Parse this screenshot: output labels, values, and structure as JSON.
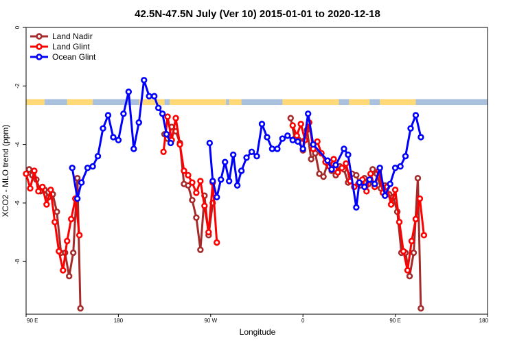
{
  "chart_data": {
    "type": "line",
    "title": "42.5N-47.5N July (Ver 10)   2015-01-01 to 2020-12-18",
    "xlabel": "Longitude",
    "ylabel": "XCO2 - MLO trend (ppm)",
    "x_ticks": [
      "90 E",
      "180",
      "90 W",
      "0",
      "90 E",
      "180"
    ],
    "y_ticks": [
      "0",
      "-2",
      "-4",
      "-6",
      "-8"
    ],
    "ylim": [
      -9.8,
      0
    ],
    "legend_position": "top-left",
    "land_ocean_strip": {
      "y_range": [
        -2.65,
        -2.45
      ],
      "land_color": "#FFD978",
      "ocean_color": "#A9C0DE"
    },
    "series": [
      {
        "name": "Land Nadir",
        "color": "#A52A2A",
        "points": [
          [
            -267,
            -4.85
          ],
          [
            -264,
            -5.05
          ],
          [
            -260,
            -5.2
          ],
          [
            -256,
            -5.6
          ],
          [
            -252,
            -5.55
          ],
          [
            -248,
            -5.8
          ],
          [
            -244,
            -5.7
          ],
          [
            -240,
            -6.3
          ],
          [
            -236,
            -7.7
          ],
          [
            -232,
            -7.7
          ],
          [
            -228,
            -8.5
          ],
          [
            -224,
            -7.7
          ],
          [
            -220,
            -5.15
          ],
          [
            -217,
            -9.6
          ],
          [
            -135,
            -3.65
          ],
          [
            -132,
            -3.8
          ],
          [
            -128,
            -3.4
          ],
          [
            -124,
            -3.55
          ],
          [
            -120,
            -3.95
          ],
          [
            -116,
            -5.35
          ],
          [
            -112,
            -5.4
          ],
          [
            -108,
            -5.9
          ],
          [
            -104,
            -6.5
          ],
          [
            -100,
            -7.6
          ],
          [
            -96,
            -5.75
          ],
          [
            -92,
            -7.1
          ],
          [
            -88,
            -6.0
          ],
          [
            -12,
            -3.1
          ],
          [
            -8,
            -3.8
          ],
          [
            -4,
            -3.85
          ],
          [
            0,
            -4.2
          ],
          [
            4,
            -3.5
          ],
          [
            8,
            -4.5
          ],
          [
            12,
            -4.3
          ],
          [
            16,
            -5.0
          ],
          [
            20,
            -5.1
          ],
          [
            24,
            -4.65
          ],
          [
            28,
            -4.9
          ],
          [
            32,
            -5.05
          ],
          [
            36,
            -4.75
          ],
          [
            40,
            -4.85
          ],
          [
            44,
            -5.3
          ],
          [
            48,
            -5.0
          ],
          [
            52,
            -5.05
          ],
          [
            56,
            -5.4
          ],
          [
            60,
            -5.15
          ],
          [
            64,
            -5.35
          ],
          [
            68,
            -4.85
          ],
          [
            72,
            -5.0
          ],
          [
            76,
            -5.5
          ],
          [
            80,
            -5.4
          ],
          [
            84,
            -5.7
          ],
          [
            88,
            -5.8
          ],
          [
            92,
            -6.3
          ],
          [
            96,
            -7.7
          ],
          [
            100,
            -7.7
          ],
          [
            104,
            -8.5
          ],
          [
            108,
            -7.7
          ],
          [
            112,
            -5.15
          ],
          [
            115,
            -9.6
          ]
        ]
      },
      {
        "name": "Land Glint",
        "color": "#FF0000",
        "points": [
          [
            -270,
            -5.0
          ],
          [
            -266,
            -5.5
          ],
          [
            -262,
            -4.9
          ],
          [
            -258,
            -5.6
          ],
          [
            -254,
            -5.45
          ],
          [
            -250,
            -6.05
          ],
          [
            -246,
            -5.55
          ],
          [
            -242,
            -6.65
          ],
          [
            -238,
            -7.65
          ],
          [
            -234,
            -8.3
          ],
          [
            -230,
            -7.3
          ],
          [
            -226,
            -6.55
          ],
          [
            -222,
            -5.85
          ],
          [
            -218,
            -7.1
          ],
          [
            -136,
            -4.25
          ],
          [
            -132,
            -3.05
          ],
          [
            -128,
            -3.85
          ],
          [
            -124,
            -3.1
          ],
          [
            -120,
            -4.0
          ],
          [
            -116,
            -4.9
          ],
          [
            -112,
            -5.05
          ],
          [
            -108,
            -5.3
          ],
          [
            -104,
            -5.65
          ],
          [
            -100,
            -5.25
          ],
          [
            -96,
            -6.1
          ],
          [
            -92,
            -7.0
          ],
          [
            -88,
            -5.3
          ],
          [
            -84,
            -7.35
          ],
          [
            -10,
            -3.35
          ],
          [
            -6,
            -3.7
          ],
          [
            -2,
            -3.3
          ],
          [
            2,
            -3.85
          ],
          [
            6,
            -3.25
          ],
          [
            10,
            -4.15
          ],
          [
            14,
            -3.9
          ],
          [
            18,
            -4.3
          ],
          [
            22,
            -4.6
          ],
          [
            26,
            -4.75
          ],
          [
            30,
            -4.5
          ],
          [
            34,
            -4.95
          ],
          [
            38,
            -4.8
          ],
          [
            42,
            -4.65
          ],
          [
            46,
            -5.25
          ],
          [
            50,
            -5.45
          ],
          [
            54,
            -5.35
          ],
          [
            58,
            -5.2
          ],
          [
            62,
            -5.6
          ],
          [
            66,
            -5.0
          ],
          [
            70,
            -5.45
          ],
          [
            74,
            -4.9
          ],
          [
            78,
            -5.65
          ],
          [
            82,
            -5.45
          ],
          [
            86,
            -6.05
          ],
          [
            90,
            -5.55
          ],
          [
            94,
            -6.65
          ],
          [
            98,
            -7.65
          ],
          [
            102,
            -8.3
          ],
          [
            106,
            -7.3
          ],
          [
            110,
            -6.55
          ],
          [
            114,
            -5.85
          ],
          [
            118,
            -7.1
          ]
        ]
      },
      {
        "name": "Ocean Glint",
        "color": "#0000FF",
        "points": [
          [
            -225,
            -4.8
          ],
          [
            -220,
            -5.85
          ],
          [
            -216,
            -5.3
          ],
          [
            -210,
            -4.8
          ],
          [
            -205,
            -4.75
          ],
          [
            -200,
            -4.4
          ],
          [
            -195,
            -3.45
          ],
          [
            -190,
            -3.0
          ],
          [
            -185,
            -3.75
          ],
          [
            -180,
            -3.85
          ],
          [
            -175,
            -2.95
          ],
          [
            -170,
            -2.2
          ],
          [
            -165,
            -4.15
          ],
          [
            -160,
            -3.25
          ],
          [
            -155,
            -1.8
          ],
          [
            -150,
            -2.35
          ],
          [
            -145,
            -2.35
          ],
          [
            -141,
            -2.75
          ],
          [
            -137,
            -2.95
          ],
          [
            -133,
            -3.65
          ],
          [
            -129,
            -3.95
          ],
          [
            -91,
            -3.95
          ],
          [
            -88,
            -5.25
          ],
          [
            -84,
            -5.8
          ],
          [
            -80,
            -5.2
          ],
          [
            -76,
            -4.6
          ],
          [
            -72,
            -5.25
          ],
          [
            -68,
            -4.35
          ],
          [
            -64,
            -5.4
          ],
          [
            -60,
            -4.9
          ],
          [
            -55,
            -4.45
          ],
          [
            -50,
            -4.25
          ],
          [
            -45,
            -4.4
          ],
          [
            -40,
            -3.3
          ],
          [
            -35,
            -3.75
          ],
          [
            -30,
            -4.15
          ],
          [
            -25,
            -4.15
          ],
          [
            -20,
            -3.8
          ],
          [
            -15,
            -3.7
          ],
          [
            -10,
            -3.85
          ],
          [
            -5,
            -3.9
          ],
          [
            0,
            -4.15
          ],
          [
            5,
            -2.95
          ],
          [
            10,
            -4.0
          ],
          [
            24,
            -4.55
          ],
          [
            28,
            -4.85
          ],
          [
            32,
            -4.7
          ],
          [
            40,
            -4.15
          ],
          [
            44,
            -4.35
          ],
          [
            52,
            -6.15
          ],
          [
            55,
            -5.3
          ],
          [
            60,
            -5.45
          ],
          [
            65,
            -5.2
          ],
          [
            70,
            -5.35
          ],
          [
            75,
            -4.8
          ],
          [
            80,
            -5.75
          ],
          [
            85,
            -5.35
          ],
          [
            90,
            -4.8
          ],
          [
            95,
            -4.75
          ],
          [
            100,
            -4.4
          ],
          [
            105,
            -3.45
          ],
          [
            110,
            -3.0
          ],
          [
            115,
            -3.75
          ]
        ]
      }
    ],
    "land_segments": [
      [
        -270,
        -252
      ],
      [
        -230,
        -205
      ],
      [
        -160,
        -135
      ],
      [
        -130,
        -75
      ],
      [
        -72,
        -60
      ],
      [
        -20,
        35
      ],
      [
        45,
        65
      ],
      [
        75,
        110
      ],
      [
        180,
        185
      ]
    ]
  }
}
